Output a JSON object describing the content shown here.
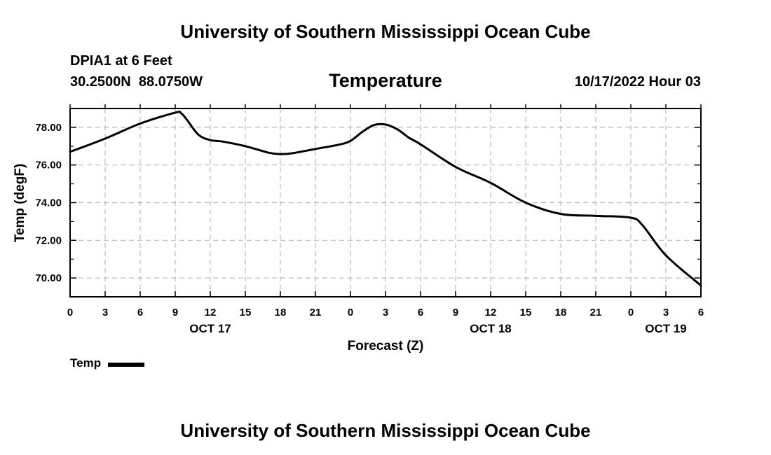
{
  "header": {
    "title": "University of Southern Mississippi Ocean Cube",
    "station": "DPIA1 at 6 Feet",
    "coords": "30.2500N  88.0750W",
    "run_time": "10/17/2022 Hour 03"
  },
  "footer": {
    "title": "University of Southern Mississippi Ocean Cube"
  },
  "chart_data": {
    "type": "line",
    "title": "Temperature",
    "xlabel": "Forecast (Z)",
    "ylabel": "Temp (degF)",
    "x_range_hours": [
      0,
      54
    ],
    "ylim": [
      69.0,
      79.0
    ],
    "y_ticks": [
      70,
      72,
      74,
      76,
      78
    ],
    "y_tick_labels": [
      "70.00",
      "72.00",
      "74.00",
      "76.00",
      "78.00"
    ],
    "x_ticks_hours": [
      0,
      3,
      6,
      9,
      12,
      15,
      18,
      21,
      24,
      27,
      30,
      33,
      36,
      39,
      42,
      45,
      48,
      51,
      54
    ],
    "x_tick_labels": [
      "0",
      "3",
      "6",
      "9",
      "12",
      "15",
      "18",
      "21",
      "0",
      "3",
      "6",
      "9",
      "12",
      "15",
      "18",
      "21",
      "0",
      "3",
      "6"
    ],
    "date_labels": [
      {
        "hour": 12,
        "label": "OCT 17"
      },
      {
        "hour": 36,
        "label": "OCT 18"
      },
      {
        "hour": 51,
        "label": "OCT 19"
      }
    ],
    "grid": true,
    "legend": {
      "label": "Temp",
      "placement": "bottom-left"
    },
    "series": [
      {
        "name": "Temp",
        "x_hours": [
          0,
          3,
          6,
          9,
          9.5,
          10,
          11,
          12,
          13,
          15,
          17,
          18,
          19,
          21,
          23,
          24,
          25,
          26,
          27,
          28,
          29,
          30,
          33,
          36,
          39,
          42,
          45,
          48,
          49,
          51,
          54
        ],
        "values": [
          76.7,
          77.4,
          78.2,
          78.78,
          78.75,
          78.4,
          77.6,
          77.32,
          77.25,
          77.0,
          76.65,
          76.58,
          76.62,
          76.85,
          77.08,
          77.28,
          77.75,
          78.12,
          78.15,
          77.9,
          77.45,
          77.1,
          75.9,
          75.05,
          74.0,
          73.4,
          73.3,
          73.2,
          72.8,
          71.2,
          69.6
        ]
      }
    ]
  }
}
